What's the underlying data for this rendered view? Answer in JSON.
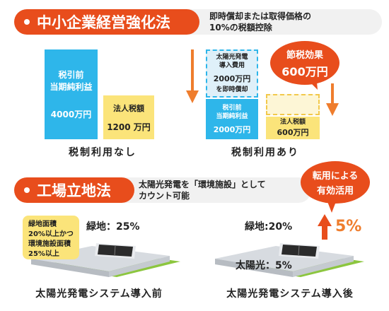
{
  "section1": {
    "title": "中小企業経営強化法",
    "description_line1": "即時償却または取得価格の",
    "description_line2": "10%の税額控除",
    "left": {
      "profit_label_line1": "税引前",
      "profit_label_line2": "当期純利益",
      "profit_value": "4000万円",
      "tax_label": "法人税額",
      "tax_value": "1200 万円",
      "caption": "税制利用なし"
    },
    "right": {
      "solar_line1": "太陽光発電",
      "solar_line2": "導入費用",
      "solar_value": "2000万円",
      "solar_note": "を即時償却",
      "profit_label_line1": "税引前",
      "profit_label_line2": "当期純利益",
      "profit_value": "2000万円",
      "tax_label": "法人税額",
      "tax_value": "600万円",
      "bubble_line1": "節税効果",
      "bubble_line2": "600万円",
      "caption": "税制利用あり"
    }
  },
  "section2": {
    "title": "工場立地法",
    "description_line1": "太陽光発電を「環境施設」として",
    "description_line2": "カウント可能",
    "bubble_line1": "転用による",
    "bubble_line2": "有効活用",
    "note_line1": "緑地面積",
    "note_line2": "20%以上かつ",
    "note_line3": "環境施設面積",
    "note_line4": "25%以上",
    "before_green": "緑地：25%",
    "after_green": "緑地:20%",
    "after_solar": "太陽光：5%",
    "increase": "5%",
    "before_caption": "太陽光発電システム導入前",
    "after_caption": "太陽光発電システム導入後"
  },
  "colors": {
    "accent": "#e84d1c",
    "blue": "#2eb6ea",
    "yellow": "#fbe47a",
    "green": "#8cc63f",
    "arrow": "#ef7d2d"
  }
}
